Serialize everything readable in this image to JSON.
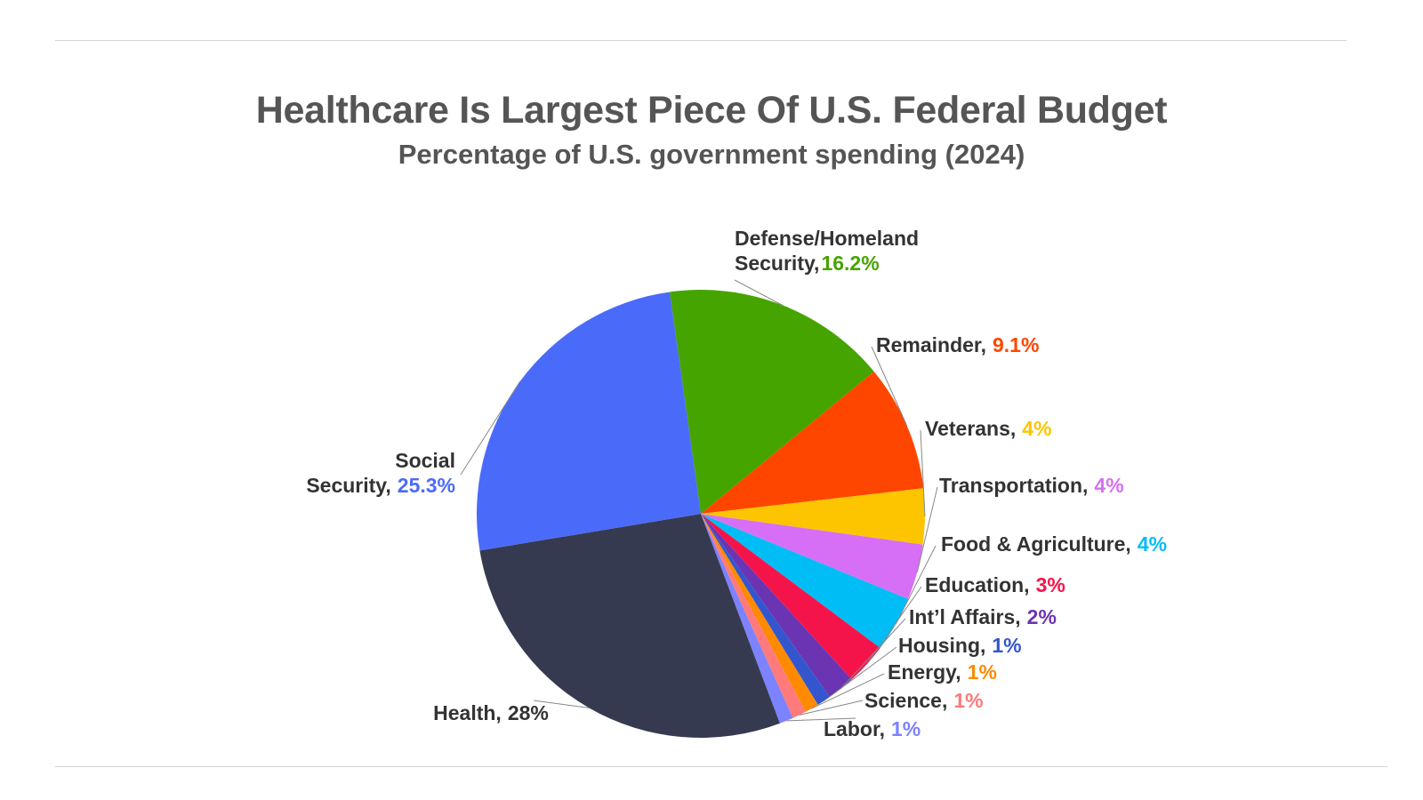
{
  "header": {
    "title": "Healthcare Is Largest Piece Of U.S. Federal Budget",
    "subtitle": "Percentage of U.S. government spending (2024)"
  },
  "chart_data": {
    "type": "pie",
    "title": "Healthcare Is Largest Piece Of U.S. Federal Budget",
    "subtitle": "Percentage of U.S. government spending (2024)",
    "slices": [
      {
        "label": "Defense/Homeland Security,",
        "label_lines": [
          "Defense/Homeland",
          "Security,"
        ],
        "value_text": "16.2%",
        "value": 16.2,
        "color": "#46a400"
      },
      {
        "label": "Remainder,",
        "label_lines": [
          "Remainder,"
        ],
        "value_text": "9.1%",
        "value": 9.1,
        "color": "#ff4600"
      },
      {
        "label": "Veterans,",
        "label_lines": [
          "Veterans,"
        ],
        "value_text": "4%",
        "value": 4,
        "color": "#fcc500"
      },
      {
        "label": "Transportation,",
        "label_lines": [
          "Transportation,"
        ],
        "value_text": "4%",
        "value": 4,
        "color": "#d66ff5"
      },
      {
        "label": "Food & Agriculture,",
        "label_lines": [
          "Food & Agriculture,"
        ],
        "value_text": "4%",
        "value": 4,
        "color": "#00bdf5"
      },
      {
        "label": "Education,",
        "label_lines": [
          "Education,"
        ],
        "value_text": "3%",
        "value": 3,
        "color": "#f5144a"
      },
      {
        "label": "Int’l Affairs,",
        "label_lines": [
          "Int’l Affairs,"
        ],
        "value_text": "2%",
        "value": 2,
        "color": "#6b34b2"
      },
      {
        "label": "Housing,",
        "label_lines": [
          "Housing,"
        ],
        "value_text": "1%",
        "value": 1,
        "color": "#3356cf"
      },
      {
        "label": "Energy,",
        "label_lines": [
          "Energy,"
        ],
        "value_text": "1%",
        "value": 1,
        "color": "#ff8a00"
      },
      {
        "label": "Science,",
        "label_lines": [
          "Science,"
        ],
        "value_text": "1%",
        "value": 1,
        "color": "#ff7a7a"
      },
      {
        "label": "Labor,",
        "label_lines": [
          "Labor,"
        ],
        "value_text": "1%",
        "value": 1,
        "color": "#7d82ff"
      },
      {
        "label": "Health,",
        "label_lines": [
          "Health,"
        ],
        "value_text": "28%",
        "value": 28,
        "color": "#363a50",
        "value_color": "#333333"
      },
      {
        "label": "Social Security,",
        "label_lines": [
          "Social",
          "Security,"
        ],
        "value_text": "25.3%",
        "value": 25.3,
        "color": "#4a6bfa"
      }
    ]
  }
}
